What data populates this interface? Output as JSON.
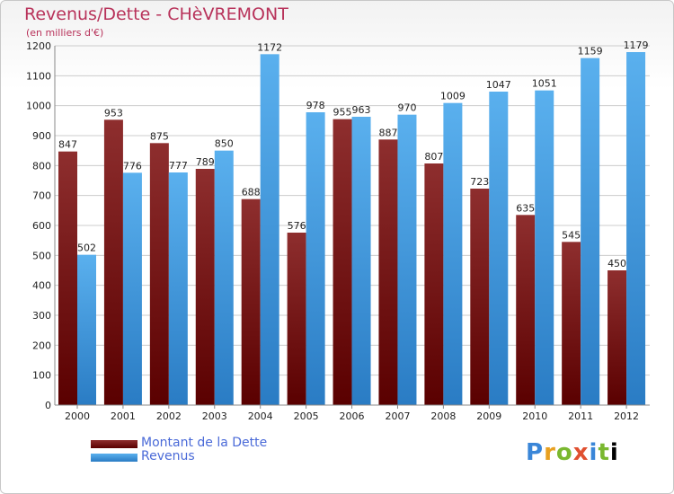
{
  "header": {
    "title": "Revenus/Dette - CHèVREMONT",
    "subtitle": "(en milliers d'€)"
  },
  "legend": {
    "items": [
      {
        "label": "Montant de la Dette",
        "color": "#7a1a1a"
      },
      {
        "label": "Revenus",
        "color": "#4aa3e8"
      }
    ]
  },
  "logo": {
    "text": "Proxiti"
  },
  "chart_data": {
    "type": "bar",
    "title": "Revenus/Dette - CHèVREMONT",
    "subtitle": "(en milliers d'€)",
    "xlabel": "",
    "ylabel": "",
    "categories": [
      "2000",
      "2001",
      "2002",
      "2003",
      "2004",
      "2005",
      "2006",
      "2007",
      "2008",
      "2009",
      "2010",
      "2011",
      "2012"
    ],
    "series": [
      {
        "name": "Montant de la Dette",
        "color": "#7a1a1a",
        "values": [
          847,
          953,
          875,
          789,
          688,
          576,
          955,
          887,
          807,
          723,
          635,
          545,
          450
        ]
      },
      {
        "name": "Revenus",
        "color": "#4aa3e8",
        "values": [
          502,
          776,
          777,
          850,
          1172,
          978,
          963,
          970,
          1009,
          1047,
          1051,
          1159,
          1179
        ]
      }
    ],
    "ylim": [
      0,
      1200
    ],
    "yticks": [
      0,
      100,
      200,
      300,
      400,
      500,
      600,
      700,
      800,
      900,
      1000,
      1100,
      1200
    ],
    "grid": true,
    "legend_position": "bottom-left"
  }
}
